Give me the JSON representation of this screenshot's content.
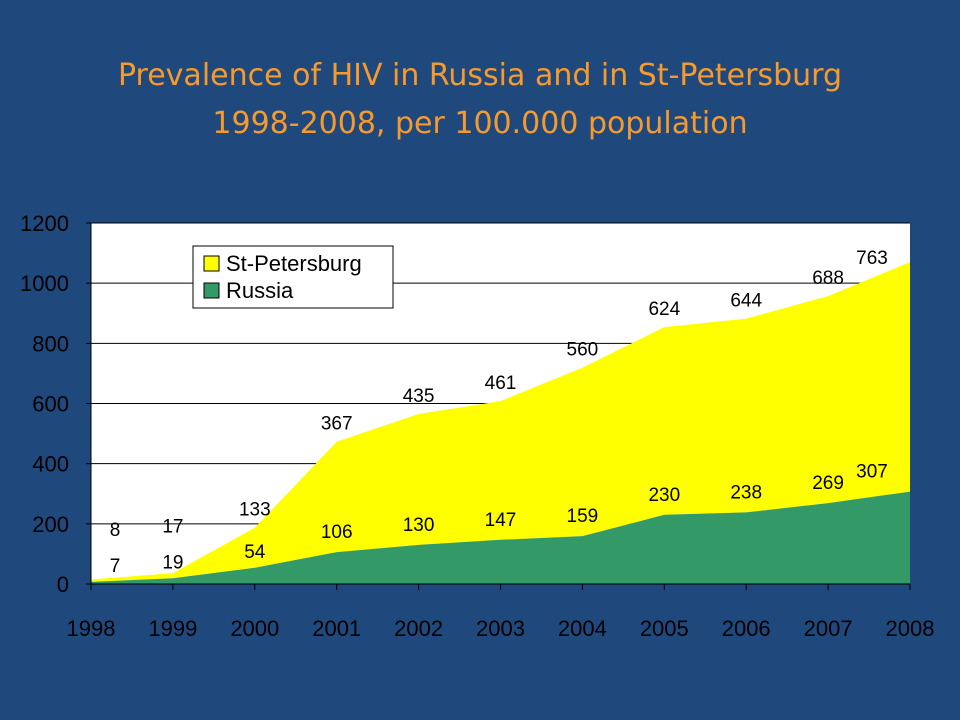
{
  "slide": {
    "title_line1": "Prevalence of HIV in Russia and in  St-Petersburg",
    "title_line2": "1998-2008, per 100.000 population"
  },
  "colors": {
    "background": "#1f497d",
    "title": "#f79a2d",
    "st_petersburg": "#ffff00",
    "russia": "#339966"
  },
  "chart_data": {
    "type": "area",
    "stacked": true,
    "x": [
      "1998",
      "1999",
      "2000",
      "2001",
      "2002",
      "2003",
      "2004",
      "2005",
      "2006",
      "2007",
      "2008"
    ],
    "y_ticks": [
      "0",
      "200",
      "400",
      "600",
      "800",
      "1000",
      "1200"
    ],
    "ylim": [
      0,
      1200
    ],
    "grid": true,
    "legend_position": "top-left",
    "legend": [
      "St-Petersburg",
      "Russia"
    ],
    "series": [
      {
        "name": "Russia",
        "color": "#339966",
        "values": [
          7,
          19,
          54,
          106,
          130,
          147,
          159,
          230,
          238,
          269,
          307
        ],
        "labels": [
          "7",
          "19",
          "54",
          "106",
          "130",
          "147",
          "159",
          "230",
          "238",
          "269",
          "307"
        ]
      },
      {
        "name": "St-Petersburg",
        "color": "#ffff00",
        "values": [
          8,
          17,
          133,
          367,
          435,
          461,
          560,
          624,
          644,
          688,
          763
        ],
        "labels": [
          "8",
          "17",
          "133",
          "367",
          "435",
          "461",
          "560",
          "624",
          "644",
          "688",
          "763"
        ]
      }
    ]
  }
}
